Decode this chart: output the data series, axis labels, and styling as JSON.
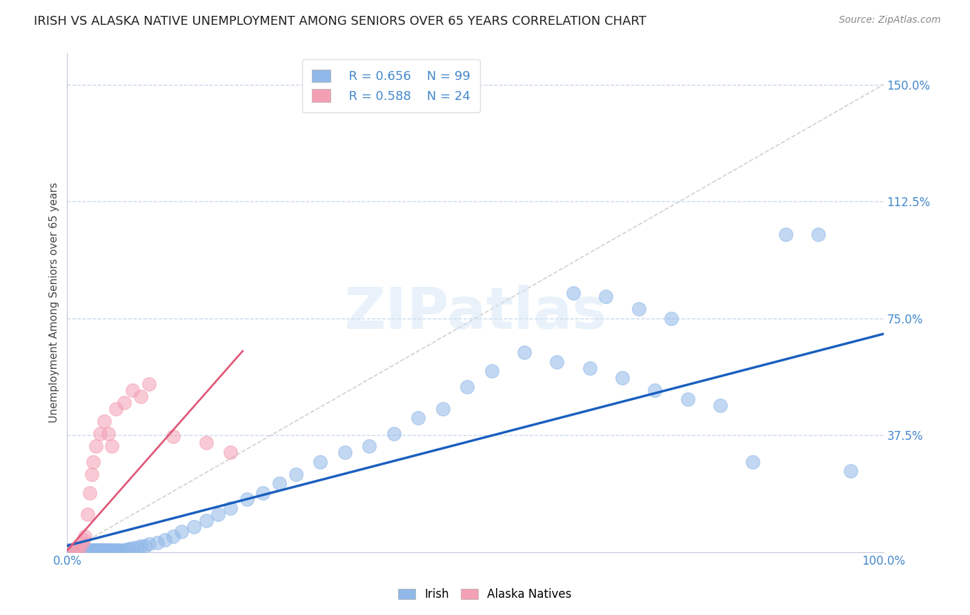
{
  "title": "IRISH VS ALASKA NATIVE UNEMPLOYMENT AMONG SENIORS OVER 65 YEARS CORRELATION CHART",
  "source_text": "Source: ZipAtlas.com",
  "ylabel": "Unemployment Among Seniors over 65 years",
  "ytick_vals": [
    0.0,
    0.375,
    0.75,
    1.125,
    1.5
  ],
  "ytick_labels": [
    "",
    "37.5%",
    "75.0%",
    "112.5%",
    "150.0%"
  ],
  "xlim": [
    0.0,
    1.0
  ],
  "ylim": [
    0.0,
    1.6
  ],
  "watermark": "ZIPatlas",
  "legend_R_irish": "R = 0.656",
  "legend_N_irish": "N = 99",
  "legend_R_alaska": "R = 0.588",
  "legend_N_alaska": "N = 24",
  "irish_color": "#90b8e8",
  "alaska_color": "#f4a0b4",
  "irish_line_color": "#1a5fbf",
  "alaska_line_color": "#e05878",
  "grid_color": "#c8d8ec",
  "ref_line_color": "#d0d0d0",
  "title_color": "#222222",
  "source_color": "#888888",
  "tick_color": "#4488cc",
  "ylabel_color": "#444444",
  "irish_line_x": [
    0.0,
    1.0
  ],
  "irish_line_y": [
    0.02,
    0.7
  ],
  "alaska_line_x": [
    0.0,
    0.215
  ],
  "alaska_line_y": [
    0.005,
    0.645
  ],
  "ref_line_x": [
    0.0,
    1.0
  ],
  "ref_line_y": [
    0.0,
    1.5
  ],
  "irish_x": [
    0.001,
    0.002,
    0.003,
    0.004,
    0.005,
    0.006,
    0.007,
    0.008,
    0.009,
    0.01,
    0.011,
    0.012,
    0.013,
    0.014,
    0.015,
    0.016,
    0.017,
    0.018,
    0.019,
    0.02,
    0.021,
    0.022,
    0.023,
    0.024,
    0.025,
    0.026,
    0.027,
    0.028,
    0.029,
    0.03,
    0.031,
    0.032,
    0.033,
    0.034,
    0.035,
    0.036,
    0.037,
    0.038,
    0.039,
    0.04,
    0.041,
    0.042,
    0.043,
    0.044,
    0.045,
    0.046,
    0.047,
    0.048,
    0.05,
    0.052,
    0.054,
    0.056,
    0.058,
    0.06,
    0.062,
    0.065,
    0.068,
    0.072,
    0.076,
    0.08,
    0.085,
    0.09,
    0.095,
    0.1,
    0.11,
    0.12,
    0.13,
    0.14,
    0.155,
    0.17,
    0.185,
    0.2,
    0.22,
    0.24,
    0.26,
    0.28,
    0.31,
    0.34,
    0.37,
    0.4,
    0.43,
    0.46,
    0.49,
    0.52,
    0.56,
    0.6,
    0.64,
    0.68,
    0.72,
    0.76,
    0.8,
    0.84,
    0.88,
    0.92,
    0.96,
    0.62,
    0.66,
    0.7,
    0.74
  ],
  "irish_y": [
    0.005,
    0.005,
    0.005,
    0.005,
    0.005,
    0.005,
    0.005,
    0.005,
    0.005,
    0.005,
    0.005,
    0.005,
    0.005,
    0.005,
    0.005,
    0.005,
    0.005,
    0.005,
    0.005,
    0.005,
    0.005,
    0.005,
    0.005,
    0.005,
    0.005,
    0.005,
    0.005,
    0.005,
    0.005,
    0.005,
    0.005,
    0.005,
    0.005,
    0.005,
    0.005,
    0.005,
    0.005,
    0.005,
    0.005,
    0.005,
    0.005,
    0.005,
    0.005,
    0.005,
    0.005,
    0.005,
    0.005,
    0.005,
    0.005,
    0.005,
    0.005,
    0.005,
    0.005,
    0.005,
    0.005,
    0.005,
    0.005,
    0.008,
    0.01,
    0.012,
    0.015,
    0.018,
    0.02,
    0.025,
    0.03,
    0.04,
    0.05,
    0.065,
    0.08,
    0.1,
    0.12,
    0.14,
    0.17,
    0.19,
    0.22,
    0.25,
    0.29,
    0.32,
    0.34,
    0.38,
    0.43,
    0.46,
    0.53,
    0.58,
    0.64,
    0.61,
    0.59,
    0.56,
    0.52,
    0.49,
    0.47,
    0.29,
    1.02,
    1.02,
    0.26,
    0.83,
    0.82,
    0.78,
    0.75
  ],
  "alaska_x": [
    0.005,
    0.01,
    0.012,
    0.015,
    0.018,
    0.02,
    0.022,
    0.025,
    0.028,
    0.03,
    0.032,
    0.035,
    0.04,
    0.045,
    0.05,
    0.055,
    0.06,
    0.07,
    0.08,
    0.09,
    0.1,
    0.13,
    0.17,
    0.2
  ],
  "alaska_y": [
    0.005,
    0.005,
    0.005,
    0.01,
    0.03,
    0.04,
    0.05,
    0.12,
    0.19,
    0.25,
    0.29,
    0.34,
    0.38,
    0.42,
    0.38,
    0.34,
    0.46,
    0.48,
    0.52,
    0.5,
    0.54,
    0.37,
    0.35,
    0.32
  ]
}
